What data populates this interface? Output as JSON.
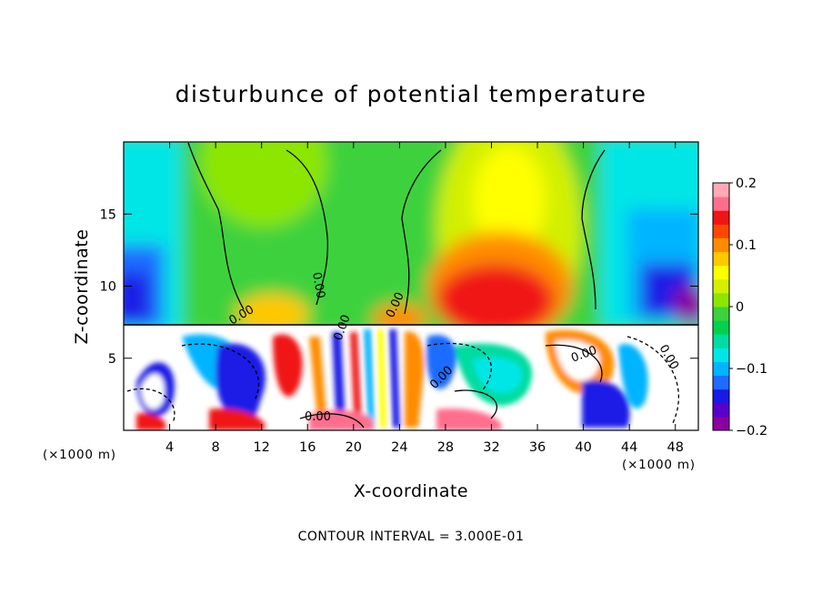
{
  "chart_data": {
    "type": "heatmap",
    "title": "disturbunce of potential temperature",
    "xlabel": "X-coordinate",
    "ylabel": "Z-coordinate",
    "x_unit": "(×1000 m)",
    "z_unit": "(×1000 m)",
    "xlim": [
      0,
      50
    ],
    "ylim": [
      0,
      20
    ],
    "x_ticks": [
      4,
      8,
      12,
      16,
      20,
      24,
      28,
      32,
      36,
      40,
      44,
      48
    ],
    "y_ticks": [
      5,
      10,
      15
    ],
    "colorbar": {
      "range": [
        -0.2,
        0.2
      ],
      "tick_labels": [
        "0.2",
        "0.1",
        "0",
        "−0.1",
        "−0.2"
      ],
      "tick_values": [
        0.2,
        0.1,
        0,
        -0.1,
        -0.2
      ],
      "colors": [
        "#8b00a0",
        "#5a00c8",
        "#1a1ae6",
        "#1e6cff",
        "#00b4ff",
        "#00e6e6",
        "#00dca0",
        "#00d250",
        "#3cd23c",
        "#8ce600",
        "#d2f000",
        "#ffff00",
        "#ffc800",
        "#ff8c00",
        "#ff4600",
        "#f01414",
        "#ff6e8c",
        "#ffaab4"
      ]
    },
    "contour_labels": [
      "0.00",
      "0.00",
      "0.00",
      "0.00",
      "0.00",
      "0.00",
      "0.00",
      "0.00"
    ],
    "footer": "CONTOUR INTERVAL = 3.000E-01",
    "grid": false
  }
}
